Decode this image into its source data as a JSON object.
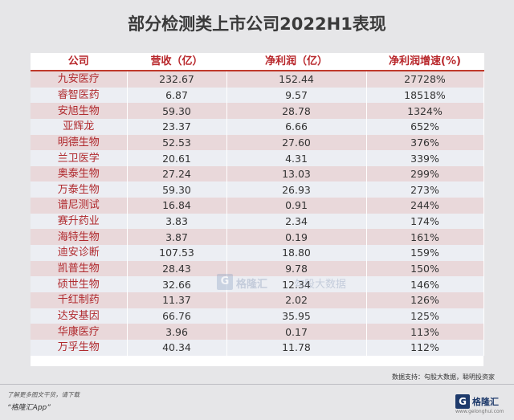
{
  "title": "部分检测类上市公司2022H1表现",
  "chart_data": {
    "type": "table",
    "title": "部分检测类上市公司2022H1表现",
    "columns": [
      "公司",
      "营收（亿）",
      "净利润（亿）",
      "净利润增速(%)"
    ],
    "rows": [
      [
        "九安医疗",
        "232.67",
        "152.44",
        "27728%"
      ],
      [
        "睿智医药",
        "6.87",
        "9.57",
        "18518%"
      ],
      [
        "安旭生物",
        "59.30",
        "28.78",
        "1324%"
      ],
      [
        "亚辉龙",
        "23.37",
        "6.66",
        "652%"
      ],
      [
        "明德生物",
        "52.53",
        "27.60",
        "376%"
      ],
      [
        "兰卫医学",
        "20.61",
        "4.31",
        "339%"
      ],
      [
        "奥泰生物",
        "27.24",
        "13.03",
        "299%"
      ],
      [
        "万泰生物",
        "59.30",
        "26.93",
        "273%"
      ],
      [
        "谱尼测试",
        "16.84",
        "0.91",
        "244%"
      ],
      [
        "赛升药业",
        "3.83",
        "2.34",
        "174%"
      ],
      [
        "海特生物",
        "3.87",
        "0.19",
        "161%"
      ],
      [
        "迪安诊断",
        "107.53",
        "18.80",
        "159%"
      ],
      [
        "凯普生物",
        "28.43",
        "9.78",
        "150%"
      ],
      [
        "硕世生物",
        "32.66",
        "12.34",
        "146%"
      ],
      [
        "千红制药",
        "11.37",
        "2.02",
        "126%"
      ],
      [
        "达安基因",
        "66.76",
        "35.95",
        "125%"
      ],
      [
        "华康医疗",
        "3.96",
        "0.17",
        "113%"
      ],
      [
        "万孚生物",
        "40.34",
        "11.78",
        "112%"
      ]
    ]
  },
  "source": "数据支持：勾股大数据，聪明投资家",
  "watermark": {
    "logo_letter": "G",
    "brand": "格隆汇",
    "partner": "勾股大数据"
  },
  "footer": {
    "promo_line1": "了解更多图文干货，请下载",
    "promo_line2": "“格隆汇App”",
    "logo_letter": "G",
    "logo_text": "格隆汇",
    "logo_sub": "www.gelonghui.com"
  },
  "colors": {
    "header_text": "#b8262a",
    "company_text": "#b02a2e",
    "row_odd": "#e9d8da",
    "row_even": "#eceef3",
    "header_rule": "#c0392b"
  }
}
